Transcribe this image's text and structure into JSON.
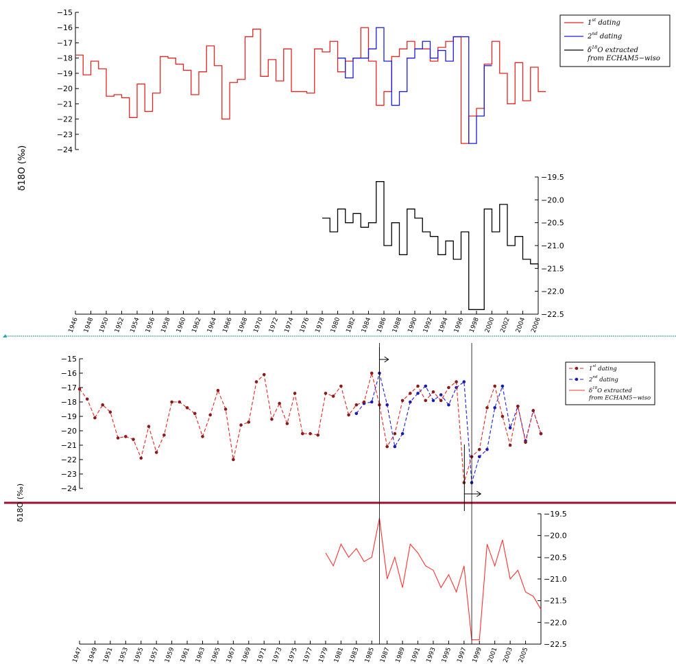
{
  "figure": {
    "ylabel_top": "δ18O (‰)",
    "ylabel_bottom": "δ18O (‰)"
  },
  "colors": {
    "first_dating": "#e8231f",
    "second_dating": "#1a1ae6",
    "echam_top": "#000000",
    "dot_red": "#8b1a1a",
    "dot_blue": "#1a1ab0",
    "echam_bottom": "#ff3030",
    "divider_teal": "#1f8c8c",
    "divider_crimson": "#a0102a"
  },
  "chart_data": [
    {
      "type": "line",
      "subtype": "step",
      "panel": "top-upper",
      "ylim": [
        -24,
        -15
      ],
      "yticks": [
        -15,
        -16,
        -17,
        -18,
        -19,
        -20,
        -21,
        -22,
        -23,
        -24
      ],
      "legend_placement": "top-right",
      "legend": [
        {
          "base": "1",
          "sup": "st",
          "rest": " dating"
        },
        {
          "base": "2",
          "sup": "nd",
          "rest": " dating"
        },
        {
          "base": "δ",
          "sup": "18",
          "rest": "O extracted",
          "line2": "from ECHAM5−wiso"
        }
      ],
      "series": [
        {
          "name": "1st dating",
          "x": [
            1946,
            1947,
            1948,
            1949,
            1950,
            1951,
            1952,
            1953,
            1954,
            1955,
            1956,
            1957,
            1958,
            1959,
            1960,
            1961,
            1962,
            1963,
            1964,
            1965,
            1966,
            1967,
            1968,
            1969,
            1970,
            1971,
            1972,
            1973,
            1974,
            1975,
            1976,
            1977,
            1978,
            1979,
            1980,
            1981,
            1982,
            1983,
            1984,
            1985,
            1986,
            1987,
            1988,
            1989,
            1990,
            1991,
            1992,
            1993,
            1994,
            1995,
            1996,
            1997,
            1998,
            1999,
            2000,
            2001,
            2002,
            2003,
            2004,
            2005,
            2006
          ],
          "y": [
            -17.8,
            -19.1,
            -18.2,
            -18.7,
            -20.5,
            -20.4,
            -20.6,
            -21.9,
            -19.7,
            -21.5,
            -20.3,
            -17.9,
            -18.0,
            -18.4,
            -18.8,
            -20.4,
            -18.9,
            -17.2,
            -18.5,
            -22.0,
            -19.6,
            -19.4,
            -16.6,
            -16.1,
            -19.2,
            -18.1,
            -19.5,
            -17.4,
            -20.2,
            -20.2,
            -20.3,
            -17.4,
            -17.6,
            -16.9,
            -18.9,
            -18.2,
            -18.0,
            -16.0,
            -18.2,
            -21.1,
            -20.2,
            -17.9,
            -17.4,
            -16.9,
            -17.4,
            -17.4,
            -18.2,
            -17.3,
            -16.9,
            -16.6,
            -23.6,
            -21.8,
            -21.3,
            -18.4,
            -16.9,
            -19.0,
            -21.0,
            -18.3,
            -20.8,
            -18.6,
            -20.2
          ]
        },
        {
          "name": "2nd dating",
          "x": [
            1980,
            1981,
            1982,
            1983,
            1984,
            1985,
            1986,
            1987,
            1988,
            1989,
            1990,
            1991,
            1992,
            1993,
            1994,
            1995,
            1996,
            1997,
            1998,
            1999
          ],
          "y": [
            -18.0,
            -19.3,
            -18.0,
            -18.0,
            -17.4,
            -16.0,
            -18.2,
            -21.1,
            -20.2,
            -18.0,
            -17.4,
            -16.9,
            -18.0,
            -17.5,
            -18.2,
            -16.6,
            -16.6,
            -23.6,
            -21.8,
            -18.5
          ]
        }
      ]
    },
    {
      "type": "line",
      "subtype": "step",
      "panel": "top-lower",
      "series_name": "δ18O extracted from ECHAM5−wiso",
      "ylim": [
        -22.5,
        -19.5
      ],
      "yticks": [
        "−19.5",
        "−20.0",
        "−20.5",
        "−21.0",
        "−21.5",
        "−22.0",
        "−22.5"
      ],
      "xlim": [
        1946,
        2006
      ],
      "xticks": [
        "1946",
        "1948",
        "1950",
        "1952",
        "1954",
        "1956",
        "1958",
        "1960",
        "1962",
        "1964",
        "1966",
        "1968",
        "1970",
        "1972",
        "1974",
        "1976",
        "1978",
        "1980",
        "1982",
        "1984",
        "1986",
        "1988",
        "1990",
        "1992",
        "1994",
        "1996",
        "1998",
        "2000",
        "2002",
        "2004",
        "2006"
      ],
      "x": [
        1978,
        1979,
        1980,
        1981,
        1982,
        1983,
        1984,
        1985,
        1986,
        1987,
        1988,
        1989,
        1990,
        1991,
        1992,
        1993,
        1994,
        1995,
        1996,
        1997,
        1998,
        1999,
        2000,
        2001,
        2002,
        2003,
        2004,
        2005,
        2006
      ],
      "y": [
        -20.4,
        -20.7,
        -20.2,
        -20.5,
        -20.3,
        -20.6,
        -20.5,
        -19.6,
        -21.0,
        -20.5,
        -21.2,
        -20.2,
        -20.4,
        -20.7,
        -20.8,
        -21.2,
        -20.9,
        -21.3,
        -20.7,
        -22.4,
        -22.4,
        -20.2,
        -20.7,
        -20.1,
        -21.0,
        -20.8,
        -21.3,
        -21.4,
        -21.5
      ]
    },
    {
      "type": "line",
      "subtype": "dashed-markers",
      "panel": "bottom-upper",
      "ylim": [
        -24,
        -15
      ],
      "yticks": [
        -15,
        -16,
        -17,
        -18,
        -19,
        -20,
        -21,
        -22,
        -23,
        -24
      ],
      "legend_placement": "top-right",
      "legend": [
        {
          "base": "1",
          "sup": "st",
          "rest": " dating"
        },
        {
          "base": "2",
          "sup": "nd",
          "rest": " dating"
        },
        {
          "base": "δ",
          "sup": "18",
          "rest": "O extracted",
          "line2": "from ECHAM5−wiso"
        }
      ],
      "series": [
        {
          "name": "1st dating",
          "x": [
            1946,
            1947,
            1948,
            1949,
            1950,
            1951,
            1952,
            1953,
            1954,
            1955,
            1956,
            1957,
            1958,
            1959,
            1960,
            1961,
            1962,
            1963,
            1964,
            1965,
            1966,
            1967,
            1968,
            1969,
            1970,
            1971,
            1972,
            1973,
            1974,
            1975,
            1976,
            1977,
            1978,
            1979,
            1980,
            1981,
            1982,
            1983,
            1984,
            1985,
            1986,
            1987,
            1988,
            1989,
            1990,
            1991,
            1992,
            1993,
            1994,
            1995,
            1996,
            1997,
            1998,
            1999,
            2000,
            2001,
            2002,
            2003,
            2004,
            2005,
            2006
          ],
          "y": [
            -17.1,
            -17.8,
            -19.1,
            -18.2,
            -18.7,
            -20.5,
            -20.4,
            -20.6,
            -21.9,
            -19.7,
            -21.5,
            -20.3,
            -18.0,
            -18.0,
            -18.4,
            -18.8,
            -20.4,
            -18.9,
            -17.2,
            -18.5,
            -22.0,
            -19.6,
            -19.4,
            -16.6,
            -16.1,
            -19.2,
            -18.1,
            -19.5,
            -17.4,
            -20.2,
            -20.2,
            -20.3,
            -17.4,
            -17.6,
            -16.9,
            -18.9,
            -18.2,
            -18.0,
            -16.0,
            -18.2,
            -21.1,
            -20.2,
            -17.9,
            -17.4,
            -16.9,
            -17.9,
            -17.3,
            -17.9,
            -17.0,
            -16.6,
            -23.6,
            -21.8,
            -21.3,
            -18.4,
            -16.9,
            -19.0,
            -21.0,
            -18.3,
            -20.8,
            -18.6,
            -20.2
          ]
        },
        {
          "name": "2nd dating",
          "x": [
            1982,
            1983,
            1984,
            1985,
            1986,
            1987,
            1988,
            1989,
            1990,
            1991,
            1992,
            1993,
            1994,
            1995,
            1996,
            1997,
            1998,
            1999,
            2000,
            2001,
            2002,
            2003,
            2004,
            2005,
            2006
          ],
          "y": [
            -18.8,
            -18.1,
            -18.0,
            -16.0,
            -18.2,
            -21.1,
            -20.2,
            -18.0,
            -17.4,
            -16.9,
            -17.9,
            -17.5,
            -18.2,
            -17.0,
            -16.6,
            -23.6,
            -21.8,
            -21.3,
            -18.4,
            -16.9,
            -19.8,
            -18.3,
            -20.7,
            -18.6,
            -20.2
          ]
        }
      ],
      "annotations": [
        {
          "type": "shift-arrow",
          "from": 1985,
          "to": 1986,
          "label_y": -15.0
        },
        {
          "type": "shift-arrow",
          "from": 1996,
          "to": 1998,
          "label_y": -24.4
        }
      ]
    },
    {
      "type": "line",
      "panel": "bottom-lower",
      "series_name": "δ18O extracted from ECHAM5−wiso",
      "ylim": [
        -22.5,
        -19.5
      ],
      "yticks": [
        "−19.5",
        "−20.0",
        "−20.5",
        "−21.0",
        "−21.5",
        "−22.0",
        "−22.5"
      ],
      "xlim": [
        1947,
        2006
      ],
      "xticks": [
        "1947",
        "1949",
        "1951",
        "1953",
        "1955",
        "1957",
        "1959",
        "1961",
        "1963",
        "1965",
        "1967",
        "1969",
        "1971",
        "1973",
        "1975",
        "1977",
        "1979",
        "1981",
        "1983",
        "1985",
        "1987",
        "1989",
        "1991",
        "1993",
        "1995",
        "1997",
        "1999",
        "2001",
        "2003",
        "2005"
      ],
      "x": [
        1979,
        1980,
        1981,
        1982,
        1983,
        1984,
        1985,
        1986,
        1987,
        1988,
        1989,
        1990,
        1991,
        1992,
        1993,
        1994,
        1995,
        1996,
        1997,
        1998,
        1999,
        2000,
        2001,
        2002,
        2003,
        2004,
        2005,
        2006,
        2007
      ],
      "y": [
        -20.4,
        -20.7,
        -20.2,
        -20.5,
        -20.3,
        -20.6,
        -20.5,
        -19.6,
        -21.0,
        -20.5,
        -21.2,
        -20.2,
        -20.4,
        -20.7,
        -20.8,
        -21.2,
        -20.9,
        -21.3,
        -20.7,
        -22.4,
        -22.4,
        -20.2,
        -20.7,
        -20.1,
        -21.0,
        -20.8,
        -21.3,
        -21.4,
        -21.7
      ],
      "vertical_lines_x": [
        1986,
        1998
      ]
    }
  ]
}
